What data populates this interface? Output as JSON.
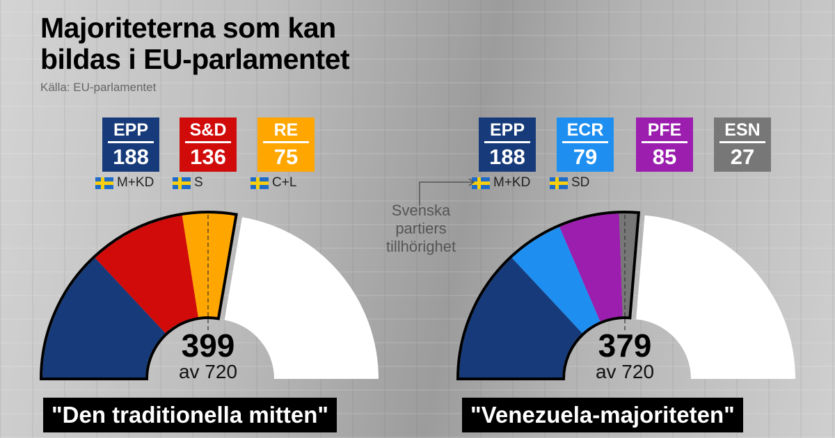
{
  "title_line1": "Majoriteterna som kan",
  "title_line2": "bildas i EU-parlamentet",
  "source": "Källa: EU-parlamentet",
  "note": [
    "Svenska",
    "partiers",
    "tillhörighet"
  ],
  "chart_data": [
    {
      "type": "pie",
      "subtype": "semicircle",
      "total_seats": 720,
      "majority_line": 360,
      "title": "\"Den traditionella mitten\"",
      "sum": 399,
      "sum_label": "av 720",
      "series": [
        {
          "name": "EPP",
          "value": 188,
          "color": "#173b7a",
          "swedish": "M+KD"
        },
        {
          "name": "S&D",
          "value": 136,
          "color": "#d10a0a",
          "swedish": "S"
        },
        {
          "name": "RE",
          "value": 75,
          "color": "#ffa600",
          "swedish": "C+L"
        }
      ]
    },
    {
      "type": "pie",
      "subtype": "semicircle",
      "total_seats": 720,
      "majority_line": 360,
      "title": "\"Venezuela-majoriteten\"",
      "sum": 379,
      "sum_label": "av 720",
      "series": [
        {
          "name": "EPP",
          "value": 188,
          "color": "#173b7a",
          "swedish": "M+KD"
        },
        {
          "name": "ECR",
          "value": 79,
          "color": "#1e8ff0",
          "swedish": "SD"
        },
        {
          "name": "PFE",
          "value": 85,
          "color": "#9b1eae",
          "swedish": ""
        },
        {
          "name": "ESN",
          "value": 27,
          "color": "#777777",
          "swedish": ""
        }
      ]
    }
  ]
}
